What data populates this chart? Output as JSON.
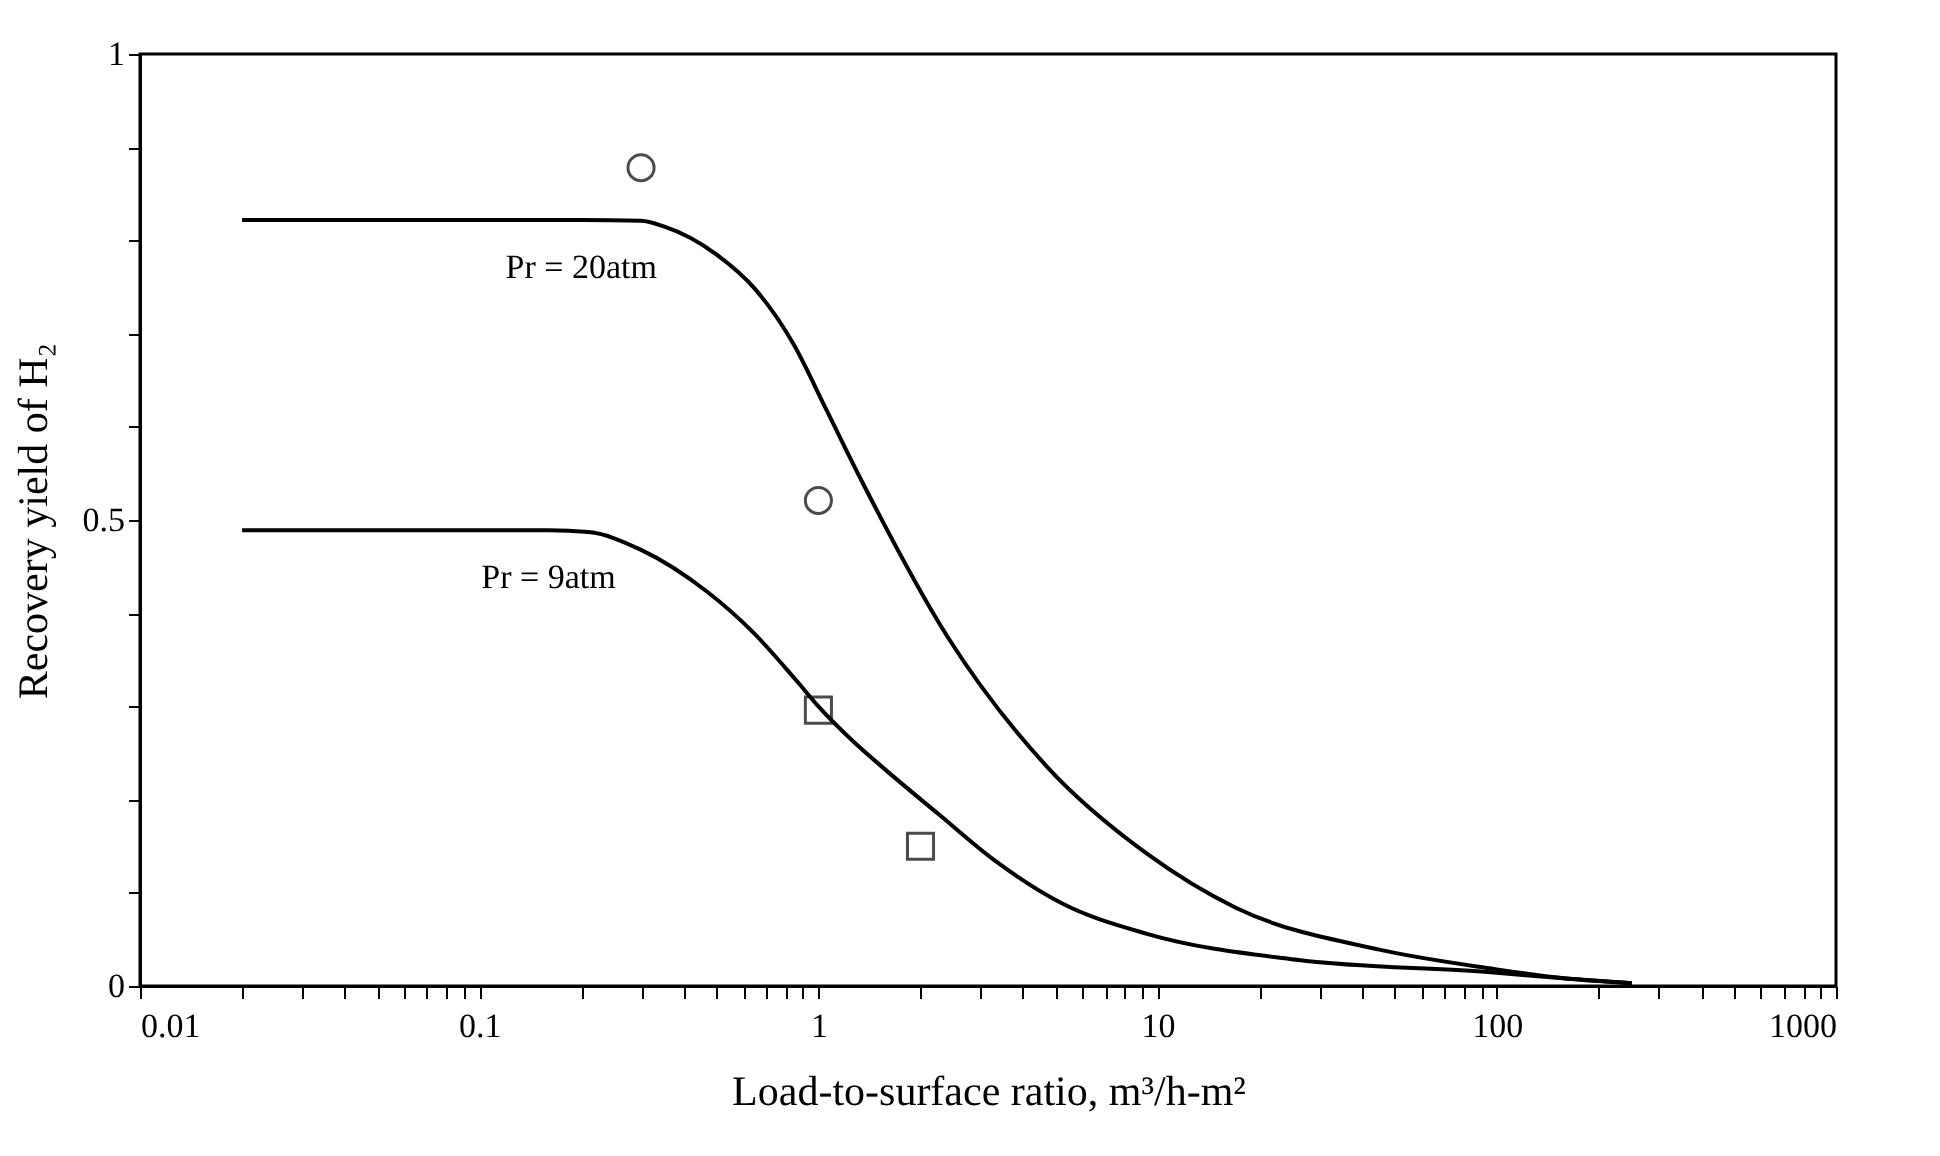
{
  "chart_data": {
    "type": "line",
    "xlabel": "Load-to-surface ratio, m³/h-m²",
    "ylabel": "Recovery yield of H₂",
    "log": "x",
    "grid": false,
    "xlim": [
      0.01,
      1000
    ],
    "ylim": [
      0,
      1
    ],
    "xticks": [
      0.01,
      {
        "value": 0.02,
        "label": null
      },
      {
        "value": 0.03,
        "label": null
      },
      {
        "value": 0.04,
        "label": null
      },
      {
        "value": 0.05,
        "label": null
      },
      {
        "value": 0.06,
        "label": null
      },
      {
        "value": 0.07,
        "label": null
      },
      {
        "value": 0.08,
        "label": null
      },
      {
        "value": 0.09,
        "label": null
      },
      0.1,
      {
        "value": 0.2,
        "label": null
      },
      {
        "value": 0.3,
        "label": null
      },
      {
        "value": 0.4,
        "label": null
      },
      {
        "value": 0.5,
        "label": null
      },
      {
        "value": 0.6,
        "label": null
      },
      {
        "value": 0.7,
        "label": null
      },
      {
        "value": 0.8,
        "label": null
      },
      {
        "value": 0.9,
        "label": null
      },
      1,
      {
        "value": 2,
        "label": null
      },
      {
        "value": 3,
        "label": null
      },
      {
        "value": 4,
        "label": null
      },
      {
        "value": 5,
        "label": null
      },
      {
        "value": 6,
        "label": null
      },
      {
        "value": 7,
        "label": null
      },
      {
        "value": 8,
        "label": null
      },
      {
        "value": 9,
        "label": null
      },
      10,
      {
        "value": 20,
        "label": null
      },
      {
        "value": 30,
        "label": null
      },
      {
        "value": 40,
        "label": null
      },
      {
        "value": 50,
        "label": null
      },
      {
        "value": 60,
        "label": null
      },
      {
        "value": 70,
        "label": null
      },
      {
        "value": 80,
        "label": null
      },
      {
        "value": 90,
        "label": null
      },
      100,
      {
        "value": 200,
        "label": null
      },
      {
        "value": 300,
        "label": null
      },
      {
        "value": 400,
        "label": null
      },
      {
        "value": 500,
        "label": null
      },
      {
        "value": 600,
        "label": null
      },
      {
        "value": 700,
        "label": null
      },
      {
        "value": 800,
        "label": null
      },
      {
        "value": 900,
        "label": null
      },
      1000
    ],
    "yticks": [
      0,
      {
        "value": 0.1,
        "label": null
      },
      {
        "value": 0.2,
        "label": null
      },
      {
        "value": 0.3,
        "label": null
      },
      {
        "value": 0.4,
        "label": null
      },
      0.5,
      {
        "value": 0.6,
        "label": null
      },
      {
        "value": 0.7,
        "label": null
      },
      {
        "value": 0.8,
        "label": null
      },
      {
        "value": 0.9,
        "label": null
      },
      1
    ],
    "series": [
      {
        "name": "Pr = 20atm",
        "color": "#000000",
        "marker": "none",
        "line_style": "solid",
        "x": [
          0.02,
          0.2,
          0.3,
          0.35,
          0.5,
          0.65,
          0.85,
          1.05,
          1.35,
          2.4,
          4.7,
          9.3,
          17,
          45,
          95,
          160,
          250
        ],
        "values": [
          0.822,
          0.822,
          0.821,
          0.815,
          0.785,
          0.748,
          0.687,
          0.62,
          0.54,
          0.375,
          0.236,
          0.142,
          0.084,
          0.039,
          0.019,
          0.008,
          0.003
        ]
      },
      {
        "name": "Pr = 9atm",
        "color": "#000000",
        "marker": "none",
        "line_style": "solid",
        "x": [
          0.02,
          0.16,
          0.21,
          0.3,
          0.47,
          0.64,
          0.86,
          1.0,
          1.27,
          1.6,
          2.25,
          3.3,
          5.2,
          9.3,
          26,
          94,
          160,
          250
        ],
        "values": [
          0.489,
          0.489,
          0.487,
          0.468,
          0.423,
          0.38,
          0.328,
          0.3,
          0.262,
          0.23,
          0.185,
          0.135,
          0.089,
          0.056,
          0.028,
          0.015,
          0.008,
          0.003
        ]
      },
      {
        "type": "scatter",
        "color": "#000000",
        "marker": "circle",
        "x": [
          0.3,
          1
        ],
        "values": [
          0.878,
          0.521
        ]
      },
      {
        "type": "scatter",
        "color": "#000000",
        "marker": "square",
        "x": [
          1,
          2
        ],
        "values": [
          0.296,
          0.15
        ]
      }
    ]
  }
}
